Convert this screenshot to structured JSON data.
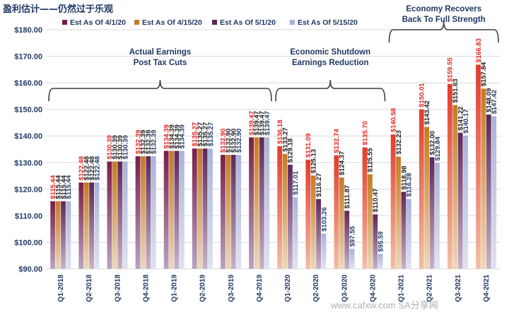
{
  "chart_data": {
    "type": "bar",
    "title": "盈利估计——仍然过于乐观",
    "ylim": [
      90,
      180
    ],
    "yticks": [
      "$90.00",
      "$100.00",
      "$110.00",
      "$120.00",
      "$130.00",
      "$140.00",
      "$150.00",
      "$160.00",
      "$170.00",
      "$180.00"
    ],
    "grid": true,
    "legend_position": "top",
    "categories": [
      "Q1-2018",
      "Q2-2018",
      "Q3-2018",
      "Q4-2018",
      "Q1-2019",
      "Q2-2019",
      "Q3-2019",
      "Q4-2019",
      "Q1-2020",
      "Q2-2020",
      "Q3-2020",
      "Q4-2020",
      "Q1-2021",
      "Q2-2021",
      "Q3-2021",
      "Q4-2021"
    ],
    "series": [
      {
        "name": "Est As Of 4/1/20",
        "color": "#7b1f4a",
        "label_color": "#e8211f",
        "values": [
          115.44,
          122.48,
          130.39,
          132.39,
          134.39,
          135.27,
          132.9,
          139.47,
          136.18,
          131.09,
          132.74,
          135.7,
          140.58,
          150.01,
          159.55,
          166.83
        ],
        "labels": [
          "$115.44",
          "$122.48",
          "$130.39",
          "$132.39",
          "$134.39",
          "$135.27",
          "$132.90",
          "$139.47",
          "$136.18",
          "$131.09",
          "$132.74",
          "$135.70",
          "$140.58",
          "$150.01",
          "$159.55",
          "$166.83"
        ]
      },
      {
        "name": "Est As Of 4/15/20",
        "color": "#c07d2a",
        "label_color": "#1a1a1a",
        "values": [
          115.44,
          122.48,
          130.39,
          132.39,
          134.39,
          135.27,
          132.9,
          139.47,
          133.27,
          125.13,
          124.37,
          125.55,
          132.23,
          143.42,
          151.63,
          157.84
        ],
        "labels": [
          "$115.44",
          "$122.48",
          "$130.39",
          "$132.39",
          "$134.39",
          "$135.27",
          "$132.90",
          "$139.47",
          "$133.27",
          "$125.13",
          "$124.37",
          "$125.55",
          "$132.23",
          "$143.42",
          "$151.63",
          "$157.84"
        ]
      },
      {
        "name": "Est As Of 5/1/20",
        "color": "#6b2d63",
        "label_color": "#1a1a1a",
        "values": [
          115.44,
          122.48,
          130.39,
          132.39,
          134.39,
          135.27,
          132.9,
          139.47,
          129.18,
          116.27,
          111.87,
          110.47,
          118.98,
          132.0,
          141.22,
          148.09
        ],
        "labels": [
          "$115.44",
          "$122.48",
          "$130.39",
          "$132.39",
          "$134.39",
          "$135.27",
          "$132.90",
          "$139.47",
          "$129.18",
          "$116.27",
          "$111.87",
          "$110.47",
          "$118.98",
          "$132.00",
          "$141.22",
          "$148.09"
        ]
      },
      {
        "name": "Est As Of 5/15/20",
        "color": "#b4bcdc",
        "label_color": "#1f3864",
        "values": [
          115.44,
          122.48,
          130.39,
          132.39,
          134.39,
          135.27,
          132.9,
          139.47,
          117.01,
          103.26,
          97.55,
          95.59,
          116.28,
          129.84,
          140.17,
          147.42
        ],
        "labels": [
          "$115.44",
          "$122.48",
          "$130.39",
          "$132.39",
          "$134.39",
          "$135.27",
          "$132.90",
          "$139.47",
          "$117.01",
          "$103.26",
          "$97.55",
          "$95.59",
          "$116.28",
          "$129.84",
          "$140.17",
          "$147.42"
        ]
      }
    ],
    "annotations": [
      {
        "lines": [
          "Actual Earnings",
          "Post Tax Cuts"
        ],
        "from_category": 0,
        "to_category": 7
      },
      {
        "lines": [
          "Economic Shutdown",
          "Earnings Reduction"
        ],
        "from_category": 8,
        "to_category": 11
      },
      {
        "lines": [
          "Economy Recovers",
          "Back To Full Strength"
        ],
        "from_category": 12,
        "to_category": 15
      }
    ]
  },
  "watermark": "www.cafxw.com  SA分享网"
}
